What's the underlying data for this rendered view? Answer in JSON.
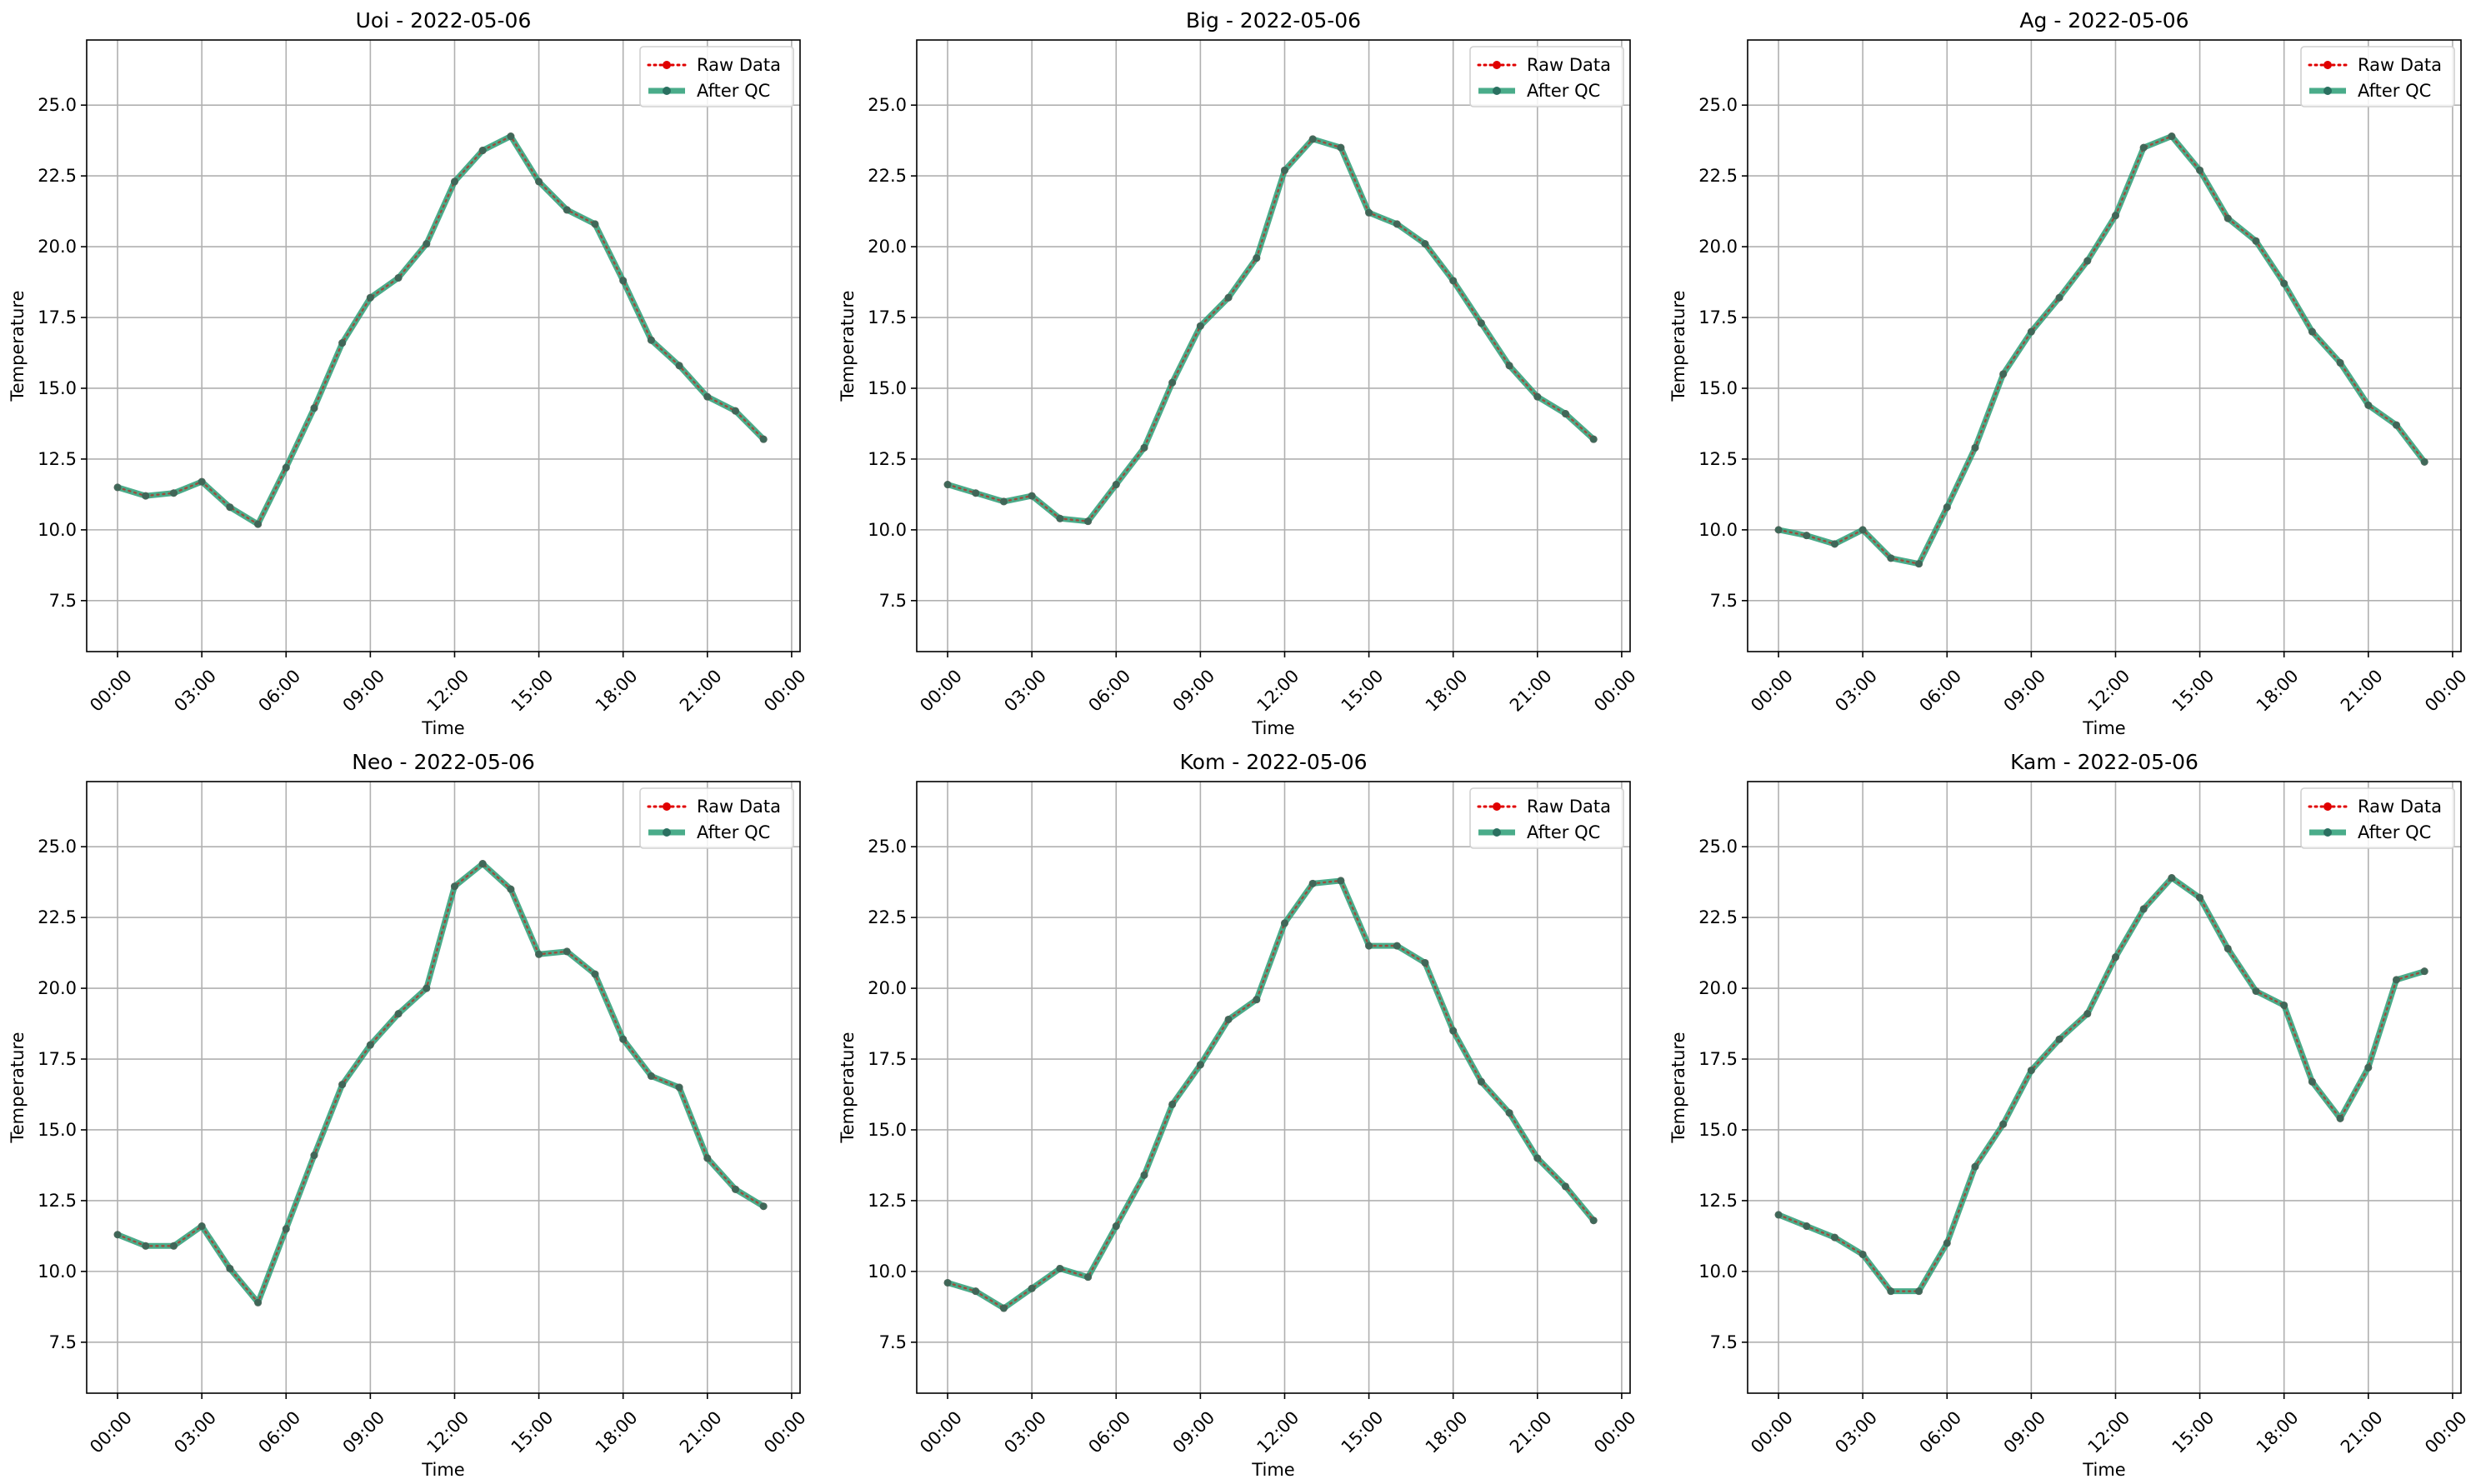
{
  "figure": {
    "background": "#ffffff"
  },
  "style": {
    "raw_color": "#e00000",
    "qc_color": "#2a9d76",
    "grid_color": "#b0b0b0",
    "axis_color": "#000000"
  },
  "chart_data": [
    {
      "type": "line",
      "title": "Uoi - 2022-05-06",
      "xlabel": "Time",
      "ylabel": "Temperature",
      "x": [
        "00:00",
        "01:00",
        "02:00",
        "03:00",
        "04:00",
        "05:00",
        "06:00",
        "07:00",
        "08:00",
        "09:00",
        "10:00",
        "11:00",
        "12:00",
        "13:00",
        "14:00",
        "15:00",
        "16:00",
        "17:00",
        "18:00",
        "19:00",
        "20:00",
        "21:00",
        "22:00",
        "23:00"
      ],
      "x_ticks": [
        "00:00",
        "03:00",
        "06:00",
        "09:00",
        "12:00",
        "15:00",
        "18:00",
        "21:00",
        "00:00"
      ],
      "y_ticks": [
        "7.5",
        "10.0",
        "12.5",
        "15.0",
        "17.5",
        "20.0",
        "22.5",
        "25.0"
      ],
      "ylim": [
        5.7,
        27.3
      ],
      "grid": true,
      "legend_position": "top-right",
      "series": [
        {
          "name": "Raw Data",
          "values": [
            11.5,
            11.2,
            11.3,
            11.7,
            10.8,
            10.2,
            12.2,
            14.3,
            16.6,
            18.2,
            18.9,
            20.1,
            22.3,
            23.4,
            23.9,
            22.3,
            21.3,
            20.8,
            18.8,
            16.7,
            15.8,
            14.7,
            14.2,
            13.2
          ]
        },
        {
          "name": "After QC",
          "values": [
            11.5,
            11.2,
            11.3,
            11.7,
            10.8,
            10.2,
            12.2,
            14.3,
            16.6,
            18.2,
            18.9,
            20.1,
            22.3,
            23.4,
            23.9,
            22.3,
            21.3,
            20.8,
            18.8,
            16.7,
            15.8,
            14.7,
            14.2,
            13.2
          ]
        }
      ]
    },
    {
      "type": "line",
      "title": "Big - 2022-05-06",
      "xlabel": "Time",
      "ylabel": "Temperature",
      "x": [
        "00:00",
        "01:00",
        "02:00",
        "03:00",
        "04:00",
        "05:00",
        "06:00",
        "07:00",
        "08:00",
        "09:00",
        "10:00",
        "11:00",
        "12:00",
        "13:00",
        "14:00",
        "15:00",
        "16:00",
        "17:00",
        "18:00",
        "19:00",
        "20:00",
        "21:00",
        "22:00",
        "23:00"
      ],
      "x_ticks": [
        "00:00",
        "03:00",
        "06:00",
        "09:00",
        "12:00",
        "15:00",
        "18:00",
        "21:00",
        "00:00"
      ],
      "y_ticks": [
        "7.5",
        "10.0",
        "12.5",
        "15.0",
        "17.5",
        "20.0",
        "22.5",
        "25.0"
      ],
      "ylim": [
        5.7,
        27.3
      ],
      "grid": true,
      "legend_position": "top-right",
      "series": [
        {
          "name": "Raw Data",
          "values": [
            11.6,
            11.3,
            11.0,
            11.2,
            10.4,
            10.3,
            11.6,
            12.9,
            15.2,
            17.2,
            18.2,
            19.6,
            22.7,
            23.8,
            23.5,
            21.2,
            20.8,
            20.1,
            18.8,
            17.3,
            15.8,
            14.7,
            14.1,
            13.2
          ]
        },
        {
          "name": "After QC",
          "values": [
            11.6,
            11.3,
            11.0,
            11.2,
            10.4,
            10.3,
            11.6,
            12.9,
            15.2,
            17.2,
            18.2,
            19.6,
            22.7,
            23.8,
            23.5,
            21.2,
            20.8,
            20.1,
            18.8,
            17.3,
            15.8,
            14.7,
            14.1,
            13.2
          ]
        }
      ]
    },
    {
      "type": "line",
      "title": "Ag - 2022-05-06",
      "xlabel": "Time",
      "ylabel": "Temperature",
      "x": [
        "00:00",
        "01:00",
        "02:00",
        "03:00",
        "04:00",
        "05:00",
        "06:00",
        "07:00",
        "08:00",
        "09:00",
        "10:00",
        "11:00",
        "12:00",
        "13:00",
        "14:00",
        "15:00",
        "16:00",
        "17:00",
        "18:00",
        "19:00",
        "20:00",
        "21:00",
        "22:00",
        "23:00"
      ],
      "x_ticks": [
        "00:00",
        "03:00",
        "06:00",
        "09:00",
        "12:00",
        "15:00",
        "18:00",
        "21:00",
        "00:00"
      ],
      "y_ticks": [
        "7.5",
        "10.0",
        "12.5",
        "15.0",
        "17.5",
        "20.0",
        "22.5",
        "25.0"
      ],
      "ylim": [
        5.7,
        27.3
      ],
      "grid": true,
      "legend_position": "top-right",
      "series": [
        {
          "name": "Raw Data",
          "values": [
            10.0,
            9.8,
            9.5,
            10.0,
            9.0,
            8.8,
            10.8,
            12.9,
            15.5,
            17.0,
            18.2,
            19.5,
            21.1,
            23.5,
            23.9,
            22.7,
            21.0,
            20.2,
            18.7,
            17.0,
            15.9,
            14.4,
            13.7,
            12.4
          ]
        },
        {
          "name": "After QC",
          "values": [
            10.0,
            9.8,
            9.5,
            10.0,
            9.0,
            8.8,
            10.8,
            12.9,
            15.5,
            17.0,
            18.2,
            19.5,
            21.1,
            23.5,
            23.9,
            22.7,
            21.0,
            20.2,
            18.7,
            17.0,
            15.9,
            14.4,
            13.7,
            12.4
          ]
        }
      ]
    },
    {
      "type": "line",
      "title": "Neo - 2022-05-06",
      "xlabel": "Time",
      "ylabel": "Temperature",
      "x": [
        "00:00",
        "01:00",
        "02:00",
        "03:00",
        "04:00",
        "05:00",
        "06:00",
        "07:00",
        "08:00",
        "09:00",
        "10:00",
        "11:00",
        "12:00",
        "13:00",
        "14:00",
        "15:00",
        "16:00",
        "17:00",
        "18:00",
        "19:00",
        "20:00",
        "21:00",
        "22:00",
        "23:00"
      ],
      "x_ticks": [
        "00:00",
        "03:00",
        "06:00",
        "09:00",
        "12:00",
        "15:00",
        "18:00",
        "21:00",
        "00:00"
      ],
      "y_ticks": [
        "7.5",
        "10.0",
        "12.5",
        "15.0",
        "17.5",
        "20.0",
        "22.5",
        "25.0"
      ],
      "ylim": [
        5.7,
        27.3
      ],
      "grid": true,
      "legend_position": "top-right",
      "series": [
        {
          "name": "Raw Data",
          "values": [
            11.3,
            10.9,
            10.9,
            11.6,
            10.1,
            8.9,
            11.5,
            14.1,
            16.6,
            18.0,
            19.1,
            20.0,
            23.6,
            24.4,
            23.5,
            21.2,
            21.3,
            20.5,
            18.2,
            16.9,
            16.5,
            14.0,
            12.9,
            12.3
          ]
        },
        {
          "name": "After QC",
          "values": [
            11.3,
            10.9,
            10.9,
            11.6,
            10.1,
            8.9,
            11.5,
            14.1,
            16.6,
            18.0,
            19.1,
            20.0,
            23.6,
            24.4,
            23.5,
            21.2,
            21.3,
            20.5,
            18.2,
            16.9,
            16.5,
            14.0,
            12.9,
            12.3
          ]
        }
      ]
    },
    {
      "type": "line",
      "title": "Kom - 2022-05-06",
      "xlabel": "Time",
      "ylabel": "Temperature",
      "x": [
        "00:00",
        "01:00",
        "02:00",
        "03:00",
        "04:00",
        "05:00",
        "06:00",
        "07:00",
        "08:00",
        "09:00",
        "10:00",
        "11:00",
        "12:00",
        "13:00",
        "14:00",
        "15:00",
        "16:00",
        "17:00",
        "18:00",
        "19:00",
        "20:00",
        "21:00",
        "22:00",
        "23:00"
      ],
      "x_ticks": [
        "00:00",
        "03:00",
        "06:00",
        "09:00",
        "12:00",
        "15:00",
        "18:00",
        "21:00",
        "00:00"
      ],
      "y_ticks": [
        "7.5",
        "10.0",
        "12.5",
        "15.0",
        "17.5",
        "20.0",
        "22.5",
        "25.0"
      ],
      "ylim": [
        5.7,
        27.3
      ],
      "grid": true,
      "legend_position": "top-right",
      "series": [
        {
          "name": "Raw Data",
          "values": [
            9.6,
            9.3,
            8.7,
            9.4,
            10.1,
            9.8,
            11.6,
            13.4,
            15.9,
            17.3,
            18.9,
            19.6,
            22.3,
            23.7,
            23.8,
            21.5,
            21.5,
            20.9,
            18.5,
            16.7,
            15.6,
            14.0,
            13.0,
            11.8
          ]
        },
        {
          "name": "After QC",
          "values": [
            9.6,
            9.3,
            8.7,
            9.4,
            10.1,
            9.8,
            11.6,
            13.4,
            15.9,
            17.3,
            18.9,
            19.6,
            22.3,
            23.7,
            23.8,
            21.5,
            21.5,
            20.9,
            18.5,
            16.7,
            15.6,
            14.0,
            13.0,
            11.8
          ]
        }
      ]
    },
    {
      "type": "line",
      "title": "Kam - 2022-05-06",
      "xlabel": "Time",
      "ylabel": "Temperature",
      "x": [
        "00:00",
        "01:00",
        "02:00",
        "03:00",
        "04:00",
        "05:00",
        "06:00",
        "07:00",
        "08:00",
        "09:00",
        "10:00",
        "11:00",
        "12:00",
        "13:00",
        "14:00",
        "15:00",
        "16:00",
        "17:00",
        "18:00",
        "19:00",
        "20:00",
        "21:00",
        "22:00",
        "23:00"
      ],
      "x_ticks": [
        "00:00",
        "03:00",
        "06:00",
        "09:00",
        "12:00",
        "15:00",
        "18:00",
        "21:00",
        "00:00"
      ],
      "y_ticks": [
        "7.5",
        "10.0",
        "12.5",
        "15.0",
        "17.5",
        "20.0",
        "22.5",
        "25.0"
      ],
      "ylim": [
        5.7,
        27.3
      ],
      "grid": true,
      "legend_position": "top-right",
      "series": [
        {
          "name": "Raw Data",
          "values": [
            12.0,
            11.6,
            11.2,
            10.6,
            9.3,
            9.3,
            11.0,
            13.7,
            15.2,
            17.1,
            18.2,
            19.1,
            21.1,
            22.8,
            23.9,
            23.2,
            21.4,
            19.9,
            19.4,
            16.7,
            15.4,
            17.2,
            20.3,
            20.6
          ]
        },
        {
          "name": "After QC",
          "values": [
            12.0,
            11.6,
            11.2,
            10.6,
            9.3,
            9.3,
            11.0,
            13.7,
            15.2,
            17.1,
            18.2,
            19.1,
            21.1,
            22.8,
            23.9,
            23.2,
            21.4,
            19.9,
            19.4,
            16.7,
            15.4,
            17.2,
            20.3,
            20.6
          ]
        }
      ]
    }
  ]
}
